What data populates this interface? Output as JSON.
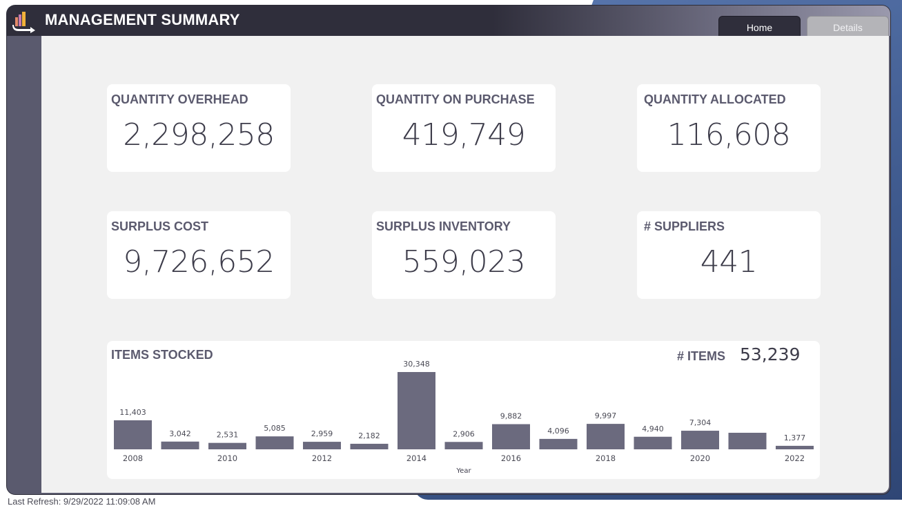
{
  "header": {
    "title": "MANAGEMENT SUMMARY",
    "tabs": [
      {
        "label": "Home",
        "active": true
      },
      {
        "label": "Details",
        "active": false
      }
    ]
  },
  "kpis": [
    {
      "label": "QUANTITY OVERHEAD",
      "value": "2,298,258"
    },
    {
      "label": "QUANTITY ON PURCHASE",
      "value": "419,749"
    },
    {
      "label": "QUANTITY ALLOCATED",
      "value": "116,608"
    },
    {
      "label": "SURPLUS COST",
      "value": "9,726,652"
    },
    {
      "label": "SURPLUS INVENTORY",
      "value": "559,023"
    },
    {
      "label": "# SUPPLIERS",
      "value": "441"
    }
  ],
  "items_summary": {
    "label": "# ITEMS",
    "value": "53,239"
  },
  "chart_data": {
    "type": "bar",
    "title": "ITEMS STOCKED",
    "xlabel": "Year",
    "ylabel": "",
    "categories": [
      "2008",
      "2009",
      "2010",
      "2011",
      "2012",
      "2013",
      "2014",
      "2015",
      "2016",
      "2017",
      "2018",
      "2019",
      "2020",
      "2021",
      "2022"
    ],
    "values": [
      11403,
      3042,
      2531,
      5085,
      2959,
      2182,
      30348,
      2906,
      9882,
      4096,
      9997,
      4940,
      7304,
      6500,
      1377
    ],
    "data_labels": [
      "11,403",
      "3,042",
      "2,531",
      "5,085",
      "2,959",
      "2,182",
      "30,348",
      "2,906",
      "9,882",
      "4,096",
      "9,997",
      "4,940",
      "7,304",
      "",
      "1,377"
    ],
    "tick_labels": [
      "2008",
      "",
      "2010",
      "",
      "2012",
      "",
      "2014",
      "",
      "2016",
      "",
      "2018",
      "",
      "2020",
      "",
      "2022"
    ],
    "bar_color": "#6b6a7e",
    "grid": false
  },
  "footer": {
    "refresh": "Last Refresh: 9/29/2022 11:09:08 AM"
  },
  "colors": {
    "header_dark": "#2f2e3b",
    "canvas": "#f1f1f1",
    "accent": "#6b6a7e"
  }
}
